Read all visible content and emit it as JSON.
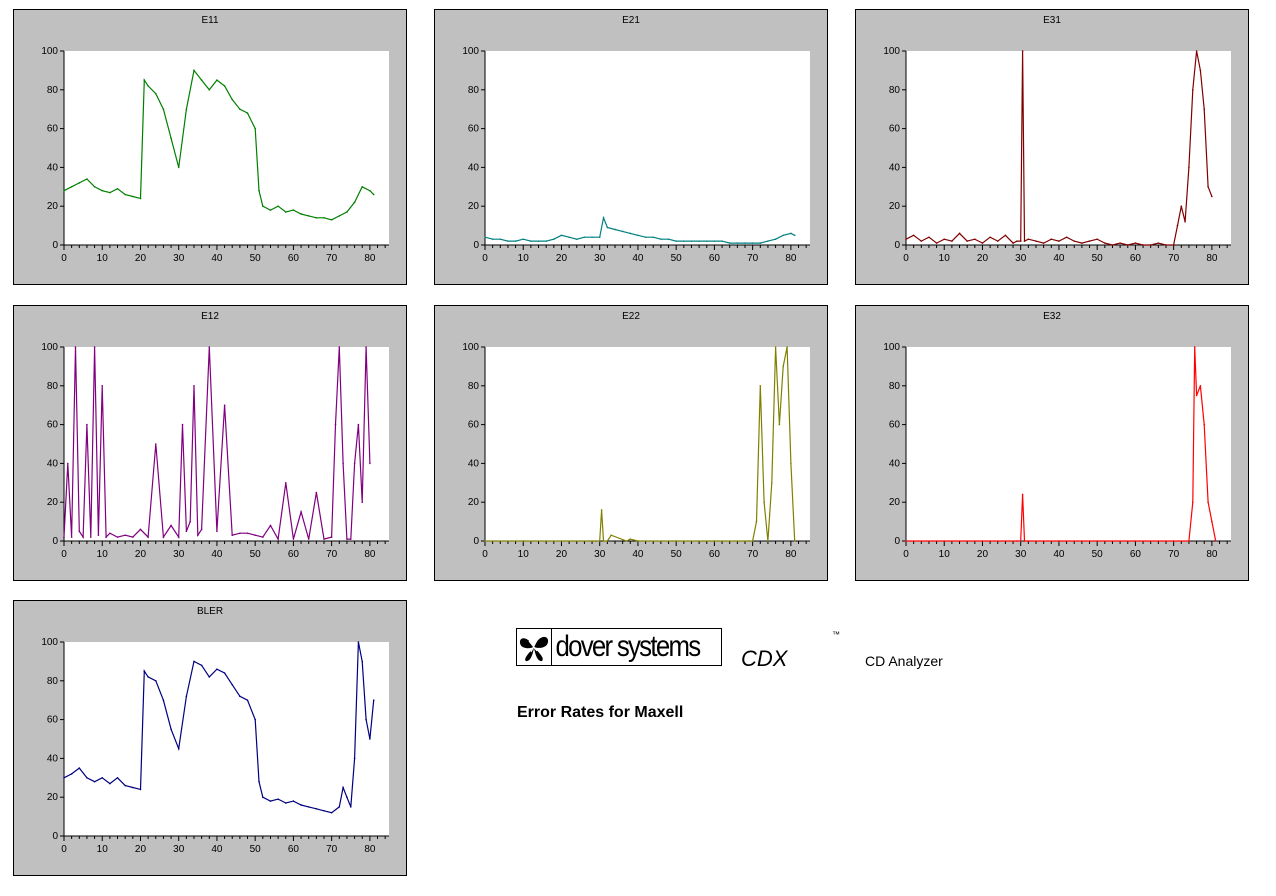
{
  "footer": {
    "brand_name": "dover systems",
    "product": "CDX",
    "trademark": "™",
    "product_subtitle": "CD Analyzer",
    "report_title": "Error Rates for Maxell"
  },
  "chart_data": [
    {
      "id": "e11",
      "type": "line",
      "title": "E11",
      "color": "#008000",
      "xlim": [
        0,
        85
      ],
      "ylim": [
        0,
        100
      ],
      "xticks": [
        0,
        10,
        20,
        30,
        40,
        50,
        60,
        70,
        80
      ],
      "yticks": [
        0,
        20,
        40,
        60,
        80,
        100
      ],
      "x": [
        0,
        2,
        4,
        6,
        8,
        10,
        12,
        14,
        16,
        18,
        20,
        21,
        22,
        24,
        26,
        28,
        30,
        32,
        34,
        36,
        38,
        40,
        42,
        44,
        46,
        48,
        50,
        51,
        52,
        54,
        56,
        58,
        60,
        62,
        64,
        66,
        68,
        70,
        72,
        74,
        76,
        78,
        80,
        81
      ],
      "values": [
        28,
        30,
        32,
        34,
        30,
        28,
        27,
        29,
        26,
        25,
        24,
        85,
        82,
        78,
        70,
        55,
        40,
        70,
        90,
        85,
        80,
        85,
        82,
        75,
        70,
        68,
        60,
        28,
        20,
        18,
        20,
        17,
        18,
        16,
        15,
        14,
        14,
        13,
        15,
        17,
        22,
        30,
        28,
        26
      ]
    },
    {
      "id": "e21",
      "type": "line",
      "title": "E21",
      "color": "#008080",
      "xlim": [
        0,
        85
      ],
      "ylim": [
        0,
        100
      ],
      "xticks": [
        0,
        10,
        20,
        30,
        40,
        50,
        60,
        70,
        80
      ],
      "yticks": [
        0,
        20,
        40,
        60,
        80,
        100
      ],
      "x": [
        0,
        2,
        4,
        6,
        8,
        10,
        12,
        14,
        16,
        18,
        20,
        22,
        24,
        26,
        28,
        30,
        31,
        32,
        34,
        36,
        38,
        40,
        42,
        44,
        46,
        48,
        50,
        52,
        54,
        56,
        58,
        60,
        62,
        64,
        66,
        68,
        70,
        72,
        74,
        76,
        78,
        80,
        81
      ],
      "values": [
        4,
        3,
        3,
        2,
        2,
        3,
        2,
        2,
        2,
        3,
        5,
        4,
        3,
        4,
        4,
        4,
        14,
        9,
        8,
        7,
        6,
        5,
        4,
        4,
        3,
        3,
        2,
        2,
        2,
        2,
        2,
        2,
        2,
        1,
        1,
        1,
        1,
        1,
        2,
        3,
        5,
        6,
        5
      ]
    },
    {
      "id": "e31",
      "type": "line",
      "title": "E31",
      "color": "#800000",
      "xlim": [
        0,
        85
      ],
      "ylim": [
        0,
        100
      ],
      "xticks": [
        0,
        10,
        20,
        30,
        40,
        50,
        60,
        70,
        80
      ],
      "yticks": [
        0,
        20,
        40,
        60,
        80,
        100
      ],
      "x": [
        0,
        2,
        4,
        6,
        8,
        10,
        12,
        14,
        16,
        18,
        20,
        22,
        24,
        26,
        28,
        29,
        30,
        30.5,
        31,
        32,
        34,
        36,
        38,
        40,
        42,
        44,
        46,
        48,
        50,
        52,
        54,
        56,
        58,
        60,
        62,
        64,
        66,
        68,
        70,
        71,
        72,
        73,
        74,
        75,
        76,
        77,
        78,
        79,
        80
      ],
      "values": [
        3,
        5,
        2,
        4,
        1,
        3,
        2,
        6,
        2,
        3,
        1,
        4,
        2,
        5,
        1,
        2,
        2,
        100,
        2,
        3,
        2,
        1,
        3,
        2,
        4,
        2,
        1,
        2,
        3,
        1,
        0,
        1,
        0,
        1,
        0,
        0,
        1,
        0,
        0,
        10,
        20,
        12,
        40,
        80,
        100,
        90,
        70,
        30,
        25
      ]
    },
    {
      "id": "e12",
      "type": "line",
      "title": "E12",
      "color": "#800080",
      "xlim": [
        0,
        85
      ],
      "ylim": [
        0,
        100
      ],
      "xticks": [
        0,
        10,
        20,
        30,
        40,
        50,
        60,
        70,
        80
      ],
      "yticks": [
        0,
        20,
        40,
        60,
        80,
        100
      ],
      "x": [
        0,
        1,
        2,
        3,
        4,
        5,
        6,
        7,
        8,
        9,
        10,
        11,
        12,
        14,
        16,
        18,
        20,
        22,
        24,
        26,
        28,
        30,
        31,
        32,
        33,
        34,
        35,
        36,
        38,
        40,
        42,
        44,
        46,
        48,
        50,
        52,
        54,
        56,
        58,
        60,
        62,
        64,
        66,
        68,
        70,
        71,
        72,
        73,
        74,
        75,
        76,
        77,
        78,
        79,
        80
      ],
      "values": [
        2,
        40,
        2,
        100,
        5,
        2,
        60,
        2,
        100,
        3,
        80,
        2,
        4,
        2,
        3,
        2,
        6,
        2,
        50,
        2,
        8,
        2,
        60,
        5,
        10,
        80,
        3,
        6,
        100,
        5,
        70,
        3,
        4,
        4,
        3,
        2,
        8,
        1,
        30,
        1,
        15,
        1,
        25,
        1,
        2,
        60,
        100,
        40,
        1,
        1,
        40,
        60,
        20,
        100,
        40
      ]
    },
    {
      "id": "e22",
      "type": "line",
      "title": "E22",
      "color": "#808000",
      "xlim": [
        0,
        85
      ],
      "ylim": [
        0,
        100
      ],
      "xticks": [
        0,
        10,
        20,
        30,
        40,
        50,
        60,
        70,
        80
      ],
      "yticks": [
        0,
        20,
        40,
        60,
        80,
        100
      ],
      "x": [
        0,
        10,
        20,
        29,
        30,
        30.5,
        31,
        32,
        33,
        37,
        38,
        40,
        50,
        60,
        69,
        70,
        71,
        72,
        73,
        74,
        75,
        76,
        77,
        78,
        79,
        80,
        81
      ],
      "values": [
        0,
        0,
        0,
        0,
        0,
        16,
        0,
        0,
        3,
        0,
        1,
        0,
        0,
        0,
        0,
        0,
        10,
        80,
        20,
        0,
        30,
        100,
        60,
        90,
        100,
        40,
        0
      ]
    },
    {
      "id": "e32",
      "type": "line",
      "title": "E32",
      "color": "#ff0000",
      "xlim": [
        0,
        85
      ],
      "ylim": [
        0,
        100
      ],
      "xticks": [
        0,
        10,
        20,
        30,
        40,
        50,
        60,
        70,
        80
      ],
      "yticks": [
        0,
        20,
        40,
        60,
        80,
        100
      ],
      "x": [
        0,
        10,
        20,
        29,
        30,
        30.5,
        31,
        32,
        40,
        50,
        60,
        70,
        74,
        75,
        75.5,
        76,
        77,
        78,
        79,
        80,
        81
      ],
      "values": [
        0,
        0,
        0,
        0,
        0,
        24,
        0,
        0,
        0,
        0,
        0,
        0,
        0,
        20,
        100,
        75,
        80,
        60,
        20,
        10,
        0
      ]
    },
    {
      "id": "bler",
      "type": "line",
      "title": "BLER",
      "color": "#000080",
      "xlim": [
        0,
        85
      ],
      "ylim": [
        0,
        100
      ],
      "xticks": [
        0,
        10,
        20,
        30,
        40,
        50,
        60,
        70,
        80
      ],
      "yticks": [
        0,
        20,
        40,
        60,
        80,
        100
      ],
      "x": [
        0,
        2,
        4,
        6,
        8,
        10,
        12,
        14,
        16,
        18,
        20,
        21,
        22,
        24,
        26,
        28,
        30,
        32,
        34,
        36,
        38,
        40,
        42,
        44,
        46,
        48,
        50,
        51,
        52,
        54,
        56,
        58,
        60,
        62,
        64,
        66,
        68,
        70,
        72,
        73,
        74,
        75,
        76,
        77,
        78,
        79,
        80,
        81
      ],
      "values": [
        30,
        32,
        35,
        30,
        28,
        30,
        27,
        30,
        26,
        25,
        24,
        85,
        82,
        80,
        70,
        55,
        45,
        72,
        90,
        88,
        82,
        86,
        84,
        78,
        72,
        70,
        60,
        28,
        20,
        18,
        19,
        17,
        18,
        16,
        15,
        14,
        13,
        12,
        15,
        25,
        20,
        15,
        40,
        100,
        90,
        60,
        50,
        70
      ]
    }
  ]
}
